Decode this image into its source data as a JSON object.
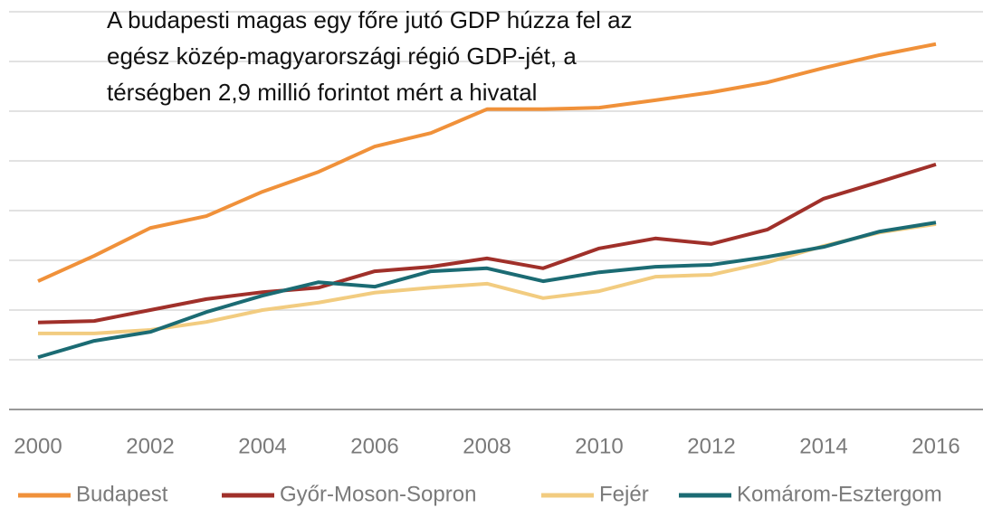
{
  "chart_data": {
    "type": "line",
    "title": "A budapesti magas egy főre jutó GDP húzza fel az egész közép-magyarországi régió GDP-jét, a térségben 2,9 millió forintot mért a hivatal",
    "x": [
      2000,
      2001,
      2002,
      2003,
      2004,
      2005,
      2006,
      2007,
      2008,
      2009,
      2010,
      2011,
      2012,
      2013,
      2014,
      2015,
      2016
    ],
    "xlim": [
      2000,
      2016
    ],
    "xticks": [
      2000,
      2002,
      2004,
      2006,
      2008,
      2010,
      2012,
      2014,
      2016
    ],
    "ylim": [
      0,
      8.2
    ],
    "yticks": [
      0,
      1,
      2,
      3,
      4,
      5,
      6,
      7,
      8
    ],
    "grid": true,
    "legend": "bottom",
    "series": [
      {
        "name": "Budapest",
        "color": "#f0913a",
        "values": [
          2.58,
          3.09,
          3.65,
          3.89,
          4.38,
          4.78,
          5.29,
          5.56,
          6.04,
          6.04,
          6.07,
          6.22,
          6.38,
          6.58,
          6.87,
          7.13,
          7.35
        ]
      },
      {
        "name": "Győr-Moson-Sopron",
        "color": "#a0302a",
        "values": [
          1.75,
          1.78,
          2.0,
          2.22,
          2.36,
          2.45,
          2.78,
          2.87,
          3.04,
          2.84,
          3.24,
          3.44,
          3.33,
          3.62,
          4.24,
          4.58,
          4.93
        ]
      },
      {
        "name": "Fejér",
        "color": "#f2cc80",
        "values": [
          1.53,
          1.53,
          1.6,
          1.76,
          2.0,
          2.15,
          2.35,
          2.45,
          2.53,
          2.24,
          2.38,
          2.67,
          2.71,
          2.96,
          3.29,
          3.56,
          3.73
        ]
      },
      {
        "name": "Komárom-Esztergom",
        "color": "#1b6b73",
        "values": [
          1.05,
          1.38,
          1.56,
          1.96,
          2.29,
          2.56,
          2.47,
          2.78,
          2.84,
          2.58,
          2.76,
          2.87,
          2.91,
          3.07,
          3.27,
          3.58,
          3.76
        ]
      }
    ]
  }
}
